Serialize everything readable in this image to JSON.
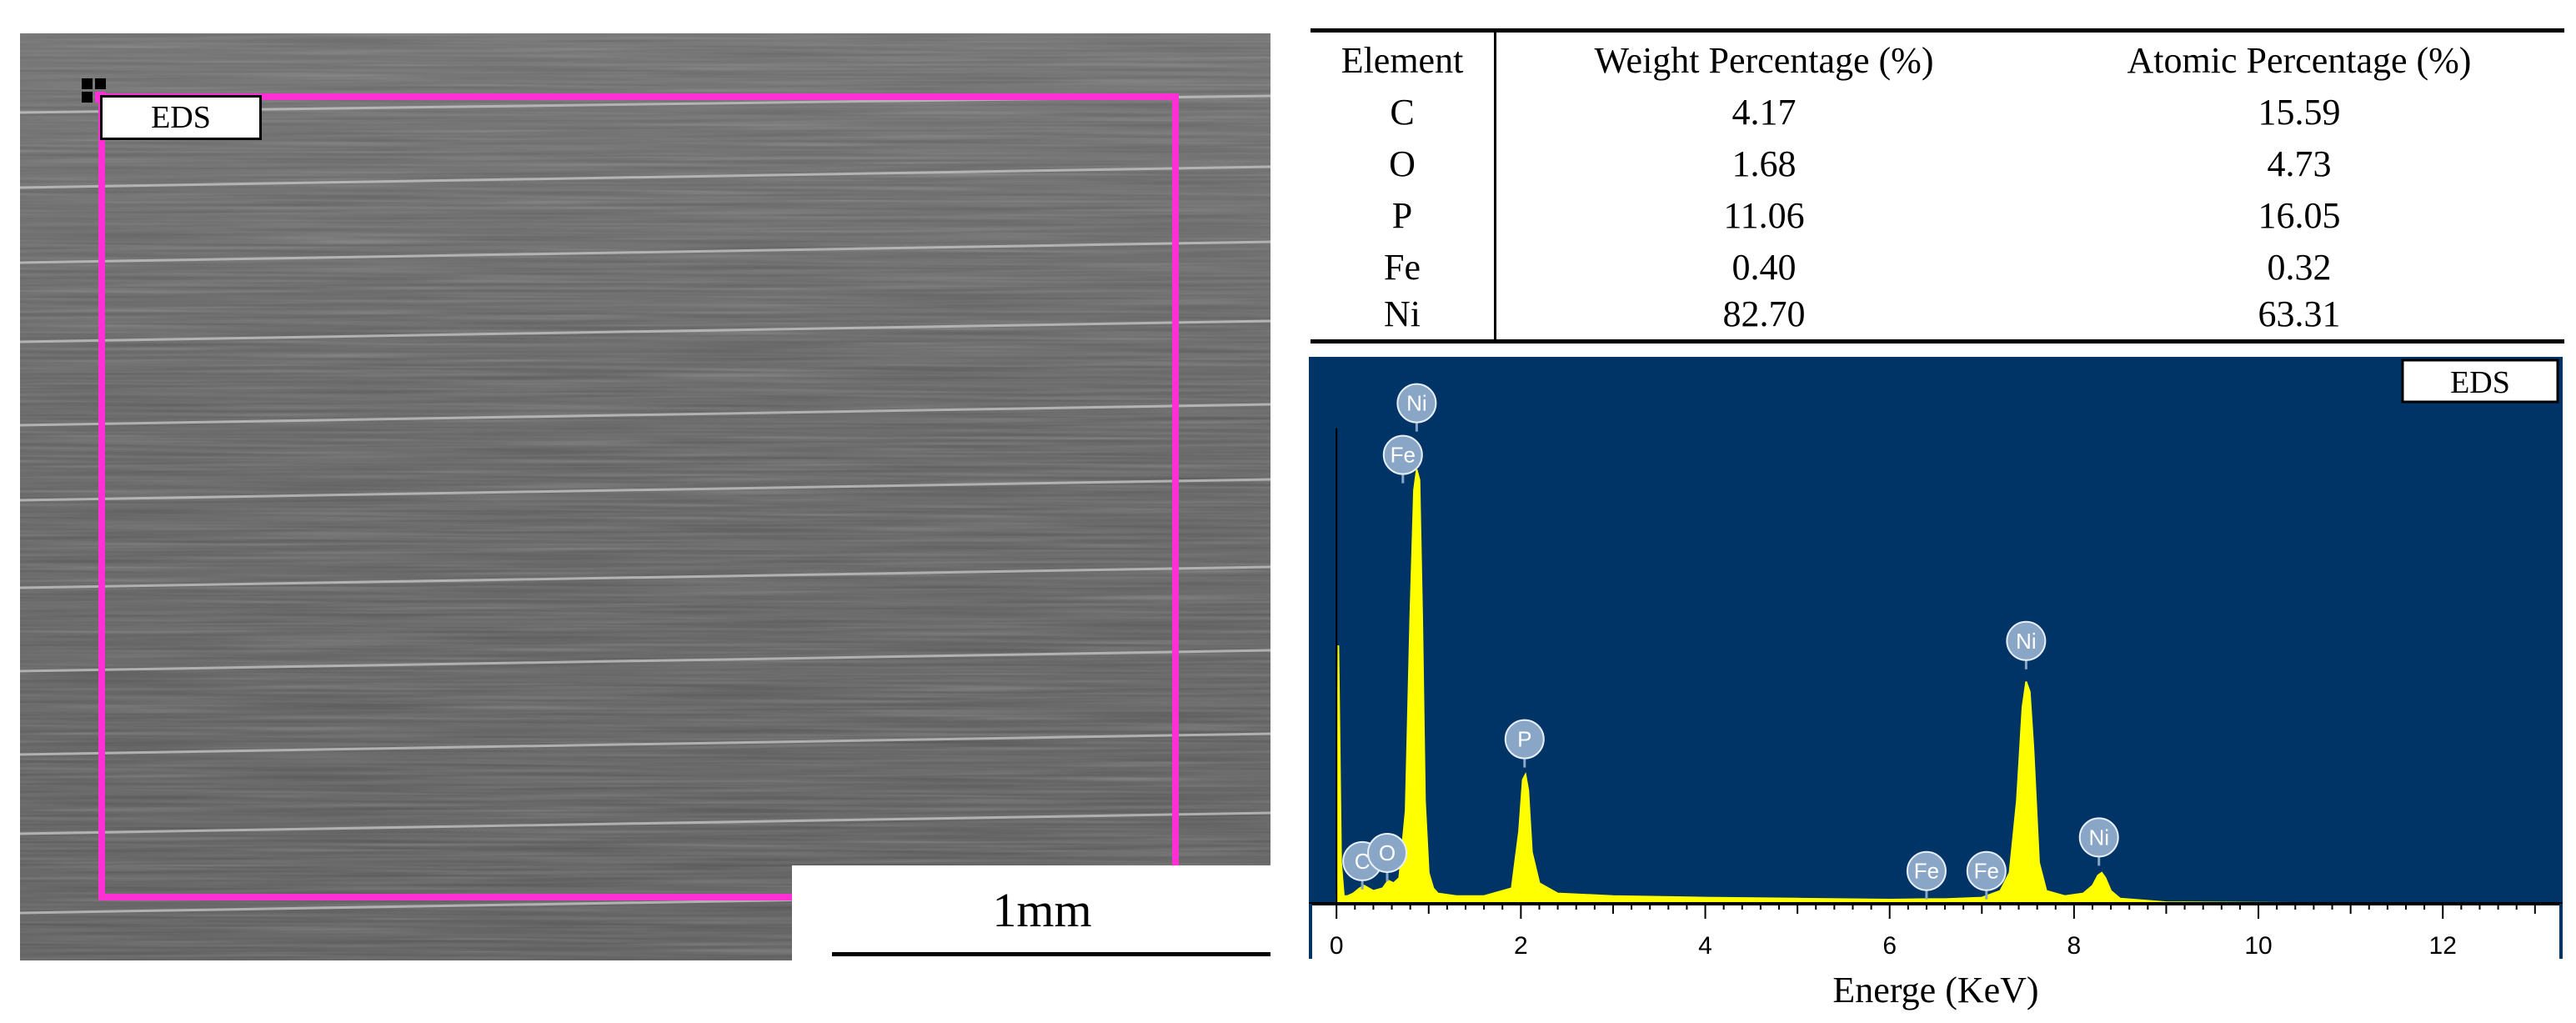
{
  "sem_image": {
    "region_label": "EDS",
    "scale_bar": "1mm",
    "colors": {
      "region_outline": "#ff2fd6"
    }
  },
  "table": {
    "headers": [
      "Element",
      "Weight Percentage (%)",
      "Atomic Percentage (%)"
    ],
    "rows": [
      [
        "C",
        "4.17",
        "15.59"
      ],
      [
        "O",
        "1.68",
        "4.73"
      ],
      [
        "P",
        "11.06",
        "16.05"
      ],
      [
        "Fe",
        "0.40",
        "0.32"
      ],
      [
        "Ni",
        "82.70",
        "63.31"
      ]
    ]
  },
  "chart_data": {
    "type": "line",
    "title": "EDS",
    "xlabel": "Energe (KeV)",
    "ylabel": "",
    "xlim": [
      -0.3,
      13.3
    ],
    "ylim": [
      0,
      100
    ],
    "x_ticks": [
      0,
      2,
      4,
      6,
      8,
      10,
      12
    ],
    "series": [
      {
        "name": "EDS spectrum",
        "color": "#ffff00",
        "x": [
          -0.3,
          0.0,
          0.02,
          0.05,
          0.08,
          0.12,
          0.18,
          0.25,
          0.3,
          0.4,
          0.5,
          0.56,
          0.62,
          0.68,
          0.75,
          0.8,
          0.84,
          0.87,
          0.9,
          0.93,
          0.96,
          1.0,
          1.05,
          1.1,
          1.3,
          1.6,
          1.9,
          1.98,
          2.02,
          2.05,
          2.08,
          2.12,
          2.2,
          2.4,
          3.0,
          4.0,
          5.0,
          6.0,
          6.4,
          6.6,
          7.0,
          7.2,
          7.3,
          7.38,
          7.44,
          7.48,
          7.52,
          7.56,
          7.62,
          7.7,
          7.9,
          8.1,
          8.2,
          8.26,
          8.3,
          8.34,
          8.4,
          8.5,
          9.0,
          10.0,
          11.0,
          12.0,
          13.3
        ],
        "values": [
          0,
          0,
          50,
          8,
          1.5,
          1.5,
          2,
          3,
          3.5,
          2.5,
          3,
          4.5,
          4,
          5,
          18,
          55,
          80,
          84,
          82,
          55,
          20,
          6,
          3,
          2,
          1.5,
          1.5,
          3,
          14,
          24,
          25,
          22,
          10,
          4,
          2,
          1.5,
          1.2,
          1,
          0.8,
          0.9,
          0.9,
          1.2,
          2.5,
          6,
          20,
          38,
          43,
          41,
          30,
          8,
          2.5,
          1.5,
          2,
          3.5,
          5.5,
          6,
          5,
          2.5,
          1,
          0.3,
          0.2,
          0.1,
          0.1,
          0
        ]
      }
    ],
    "peak_labels": [
      {
        "label": "C",
        "x": 0.28,
        "y": 3.4
      },
      {
        "label": "O",
        "x": 0.55,
        "y": 5.0
      },
      {
        "label": "Ni",
        "x": 0.87,
        "y": 92
      },
      {
        "label": "Fe",
        "x": 0.72,
        "y": 82
      },
      {
        "label": "P",
        "x": 2.04,
        "y": 27
      },
      {
        "label": "Fe",
        "x": 6.4,
        "y": 1.5
      },
      {
        "label": "Fe",
        "x": 7.05,
        "y": 1.5
      },
      {
        "label": "Ni",
        "x": 7.48,
        "y": 46
      },
      {
        "label": "Ni",
        "x": 8.27,
        "y": 8
      }
    ],
    "colors": {
      "background": "#003366",
      "line": "#ffff00",
      "badge": "#8aa6c6"
    }
  }
}
